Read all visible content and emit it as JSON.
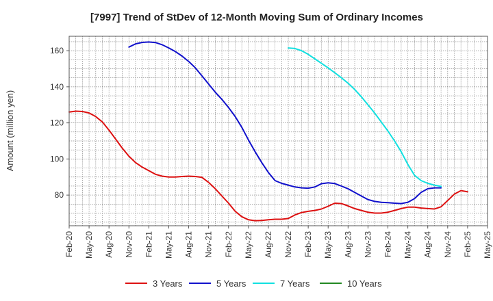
{
  "chart_data": {
    "type": "line",
    "title": "[7997]  Trend of StDev of 12-Month Moving Sum of Ordinary Incomes",
    "ylabel": "Amount (million yen)",
    "xlabel": "",
    "ylim": [
      63,
      168
    ],
    "yticks": [
      80,
      100,
      120,
      140,
      160
    ],
    "x_ticks": [
      "Feb-20",
      "May-20",
      "Aug-20",
      "Nov-20",
      "Feb-21",
      "May-21",
      "Aug-21",
      "Nov-21",
      "Feb-22",
      "May-22",
      "Aug-22",
      "Nov-22",
      "Feb-23",
      "May-23",
      "Aug-23",
      "Nov-23",
      "Feb-24",
      "May-24",
      "Aug-24",
      "Nov-24",
      "Feb-25",
      "May-25"
    ],
    "x_months": [
      "2020-02",
      "2020-03",
      "2020-04",
      "2020-05",
      "2020-06",
      "2020-07",
      "2020-08",
      "2020-09",
      "2020-10",
      "2020-11",
      "2020-12",
      "2021-01",
      "2021-02",
      "2021-03",
      "2021-04",
      "2021-05",
      "2021-06",
      "2021-07",
      "2021-08",
      "2021-09",
      "2021-10",
      "2021-11",
      "2021-12",
      "2022-01",
      "2022-02",
      "2022-03",
      "2022-04",
      "2022-05",
      "2022-06",
      "2022-07",
      "2022-08",
      "2022-09",
      "2022-10",
      "2022-11",
      "2022-12",
      "2023-01",
      "2023-02",
      "2023-03",
      "2023-04",
      "2023-05",
      "2023-06",
      "2023-07",
      "2023-08",
      "2023-09",
      "2023-10",
      "2023-11",
      "2023-12",
      "2024-01",
      "2024-02",
      "2024-03",
      "2024-04",
      "2024-05",
      "2024-06",
      "2024-07",
      "2024-08",
      "2024-09",
      "2024-10",
      "2024-11",
      "2024-12",
      "2025-01",
      "2025-02",
      "2025-03",
      "2025-04",
      "2025-05"
    ],
    "grid": true,
    "legend_position": "bottom",
    "series": [
      {
        "name": "3 Years",
        "color": "#dd1111",
        "values": [
          126,
          126.5,
          126.3,
          125.5,
          123.5,
          120.5,
          116,
          111,
          106,
          101.5,
          98,
          95.5,
          93.5,
          91.5,
          90.5,
          90,
          90,
          90.3,
          90.5,
          90.3,
          89.8,
          87,
          83.5,
          79.5,
          75.5,
          71,
          68,
          66.3,
          65.8,
          65.9,
          66.3,
          66.6,
          66.6,
          67,
          69,
          70.3,
          71,
          71.5,
          72.3,
          73.8,
          75.5,
          75.3,
          74,
          72.5,
          71.5,
          70.5,
          70,
          70,
          70.5,
          71.5,
          72.5,
          73.3,
          73.3,
          72.8,
          72.5,
          72.3,
          73.5,
          77,
          80.5,
          82.5,
          81.8,
          null,
          null,
          null
        ]
      },
      {
        "name": "5 Years",
        "color": "#1111cc",
        "values": [
          null,
          null,
          null,
          null,
          null,
          null,
          null,
          null,
          null,
          162,
          163.8,
          164.6,
          164.8,
          164.5,
          163.3,
          161.5,
          159.5,
          157,
          154,
          150.5,
          146,
          141.5,
          137,
          133,
          128.5,
          123.5,
          117.5,
          110.5,
          104,
          98,
          92.5,
          88,
          86.5,
          85.5,
          84.5,
          84,
          83.8,
          84.5,
          86.3,
          86.8,
          86.4,
          85,
          83.5,
          81.5,
          79.5,
          77.5,
          76.5,
          76,
          75.8,
          75.5,
          75.3,
          76,
          78,
          81.5,
          83.5,
          84,
          84,
          null,
          null,
          null,
          null,
          null,
          null,
          null
        ]
      },
      {
        "name": "7 Years",
        "color": "#11e0e0",
        "values": [
          null,
          null,
          null,
          null,
          null,
          null,
          null,
          null,
          null,
          null,
          null,
          null,
          null,
          null,
          null,
          null,
          null,
          null,
          null,
          null,
          null,
          null,
          null,
          null,
          null,
          null,
          null,
          null,
          null,
          null,
          null,
          null,
          null,
          161.5,
          161.2,
          160,
          158,
          155.5,
          153,
          150.5,
          147.8,
          145,
          142,
          138.5,
          134.5,
          130,
          125.5,
          120.5,
          115.5,
          110,
          104,
          97,
          91,
          88,
          86.5,
          85.5,
          84.8,
          null,
          null,
          null,
          null,
          null,
          null,
          null
        ]
      },
      {
        "name": "10 Years",
        "color": "#228822",
        "values": []
      }
    ]
  }
}
